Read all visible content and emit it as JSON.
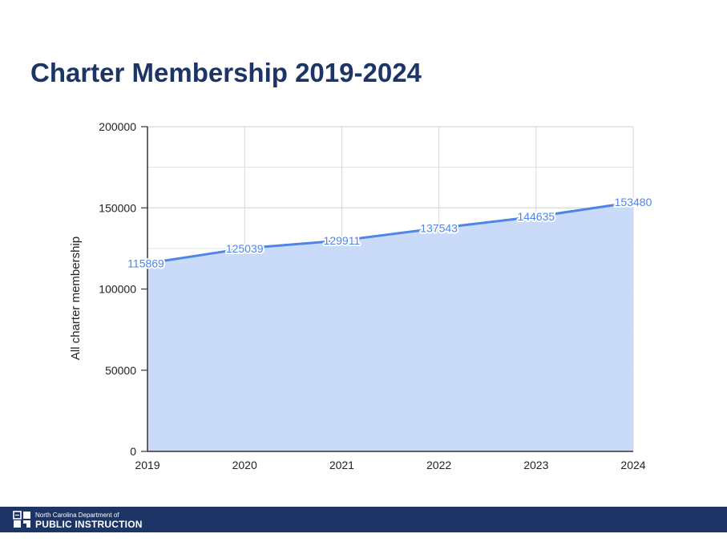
{
  "slide": {
    "title": "Charter Membership 2019-2024"
  },
  "footer": {
    "department": "North Carolina Department of",
    "organization": "PUBLIC INSTRUCTION"
  },
  "colors": {
    "title": "#1c3566",
    "footer_bg": "#1c3566",
    "line": "#4d86e8",
    "area_fill": "#c6d9f8",
    "grid": "#d9d9d9"
  },
  "chart_data": {
    "type": "area",
    "x": [
      "2019",
      "2020",
      "2021",
      "2022",
      "2023",
      "2024"
    ],
    "series": [
      {
        "values": [
          115869,
          125039,
          129911,
          137543,
          144635,
          153480
        ]
      }
    ],
    "data_labels": [
      "115869",
      "125039",
      "129911",
      "137543",
      "144635",
      "153480"
    ],
    "title": "",
    "xlabel": "",
    "ylabel": "All charter membership",
    "ylim": [
      0,
      200000
    ],
    "yticks": [
      0,
      50000,
      100000,
      150000,
      200000
    ],
    "ytick_labels": [
      "0",
      "50000",
      "100000",
      "150000",
      "200000"
    ],
    "grid": true,
    "legend": "none"
  }
}
